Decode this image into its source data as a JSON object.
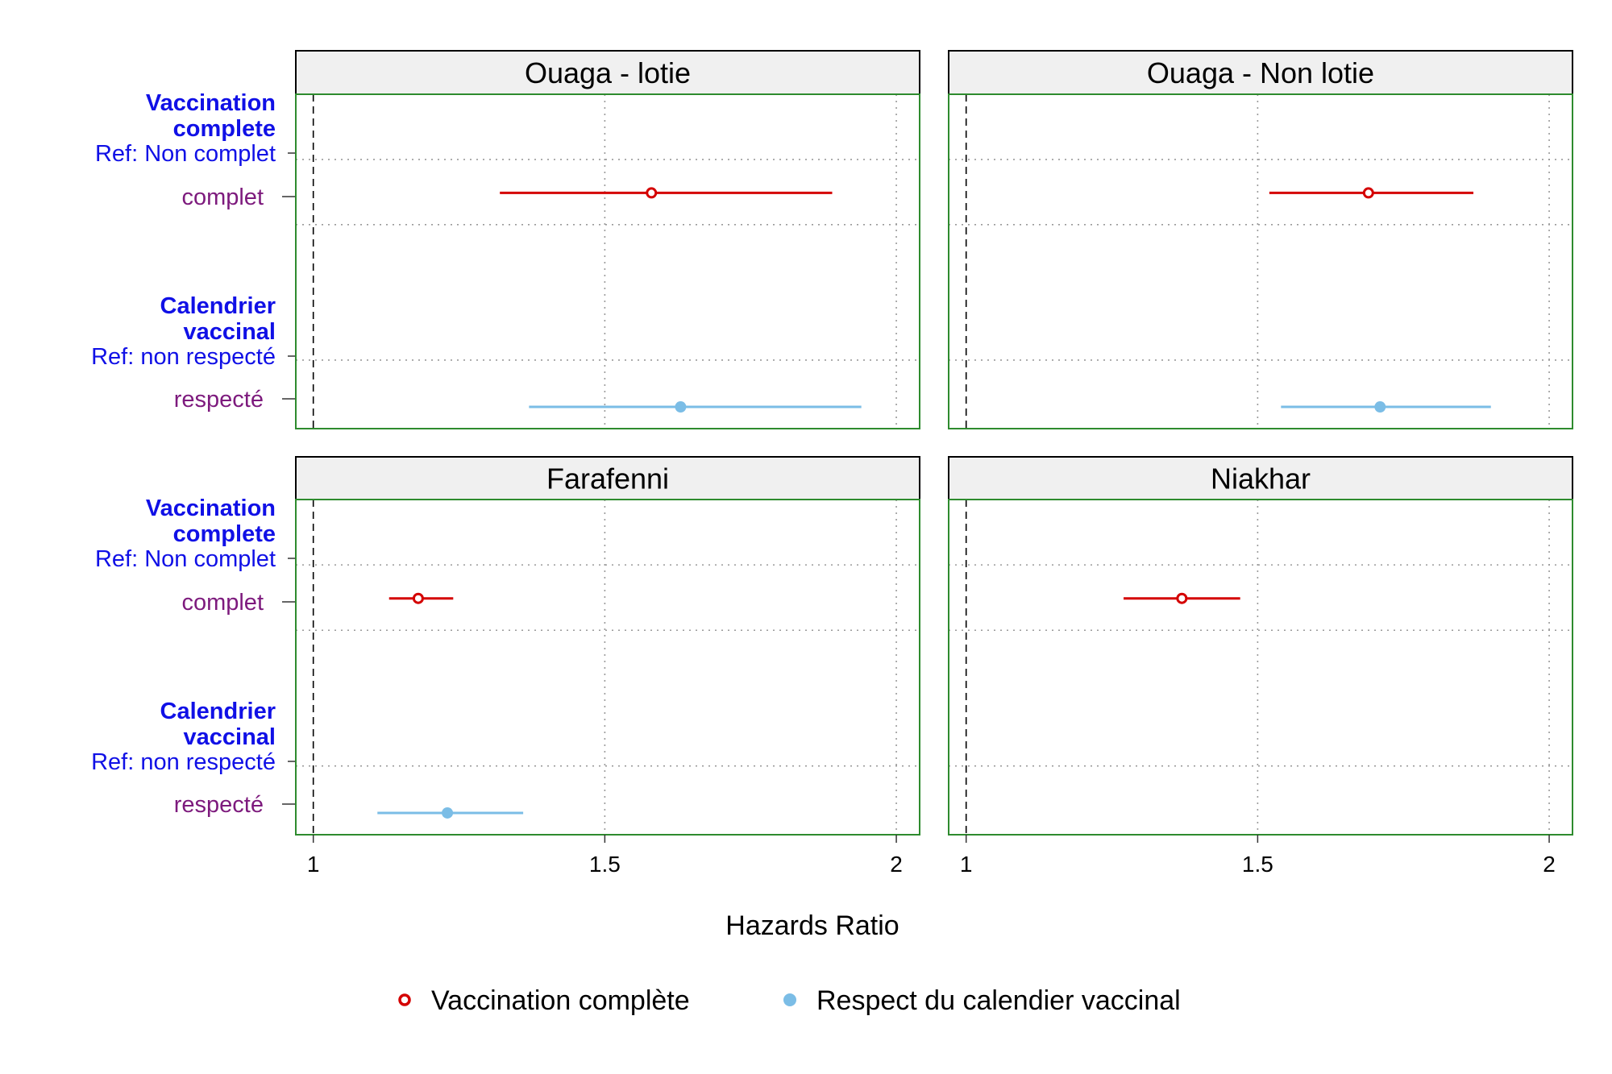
{
  "chart_data": {
    "type": "scatter",
    "subtype": "forest-plot-faceted",
    "xlabel": "Hazards Ratio",
    "xlim": [
      0.97,
      2.04
    ],
    "xticks": [
      1,
      1.5,
      2
    ],
    "xtick_labels": [
      "1",
      "1.5",
      "2"
    ],
    "reference_line": 1,
    "grid": "dotted",
    "legend_position": "bottom",
    "row_labels": [
      {
        "kind": "header",
        "lines": [
          "Vaccination",
          "complete"
        ]
      },
      {
        "kind": "ref",
        "text": "Ref: Non complet"
      },
      {
        "kind": "level",
        "text": "complet"
      },
      {
        "kind": "header",
        "lines": [
          "Calendrier",
          "vaccinal"
        ]
      },
      {
        "kind": "ref",
        "text": "Ref: non respecté"
      },
      {
        "kind": "level",
        "text": "respecté"
      }
    ],
    "series": [
      {
        "name": "Vaccination complète",
        "color": "#d40000",
        "marker": "open-circle",
        "row": "complet"
      },
      {
        "name": "Respect du calendier vaccinal",
        "color": "#7bbde6",
        "marker": "filled-circle",
        "row": "respecté"
      }
    ],
    "panels": [
      {
        "title": "Ouaga - lotie",
        "estimates": [
          {
            "series": 0,
            "hr": 1.58,
            "lo": 1.32,
            "hi": 1.89
          },
          {
            "series": 1,
            "hr": 1.63,
            "lo": 1.37,
            "hi": 1.94
          }
        ]
      },
      {
        "title": "Ouaga - Non lotie",
        "estimates": [
          {
            "series": 0,
            "hr": 1.69,
            "lo": 1.52,
            "hi": 1.87
          },
          {
            "series": 1,
            "hr": 1.71,
            "lo": 1.54,
            "hi": 1.9
          }
        ]
      },
      {
        "title": "Farafenni",
        "estimates": [
          {
            "series": 0,
            "hr": 1.18,
            "lo": 1.13,
            "hi": 1.24
          },
          {
            "series": 1,
            "hr": 1.23,
            "lo": 1.11,
            "hi": 1.36
          }
        ]
      },
      {
        "title": "Niakhar",
        "estimates": [
          {
            "series": 0,
            "hr": 1.37,
            "lo": 1.27,
            "hi": 1.47
          }
        ]
      }
    ]
  }
}
